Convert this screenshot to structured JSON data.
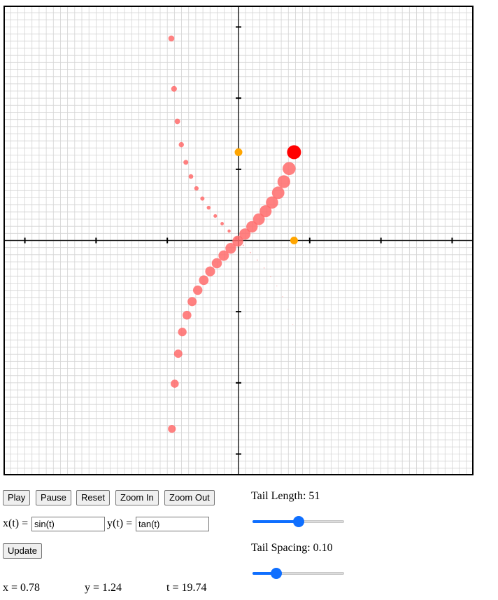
{
  "plot": {
    "x_range": [
      -3.3,
      3.3
    ],
    "y_range": [
      -3.3,
      3.3
    ],
    "grid_minor": 0.1,
    "tick_step": 1,
    "head": {
      "x": 0.78,
      "y": 1.24,
      "color": "#ff0000"
    },
    "tail_color": "#ff6b6b",
    "projection_color": "#ffa500",
    "tail_length": 51,
    "tail_spacing": 0.1,
    "t": 19.74
  },
  "controls": {
    "play": "Play",
    "pause": "Pause",
    "reset": "Reset",
    "zoom_in": "Zoom In",
    "zoom_out": "Zoom Out",
    "update": "Update"
  },
  "equations": {
    "x_label": "x(t) =",
    "x_value": "sin(t)",
    "y_label": "y(t) =",
    "y_value": "tan(t)"
  },
  "sliders": {
    "tail_length": {
      "label": "Tail Length: 51",
      "fraction": 0.5
    },
    "tail_spacing": {
      "label": "Tail Spacing: 0.10",
      "fraction": 0.23
    }
  },
  "readout": {
    "x": "x = 0.78",
    "y": "y = 1.24",
    "t": "t = 19.74"
  },
  "colors": {
    "accent": "#0f6fff"
  }
}
